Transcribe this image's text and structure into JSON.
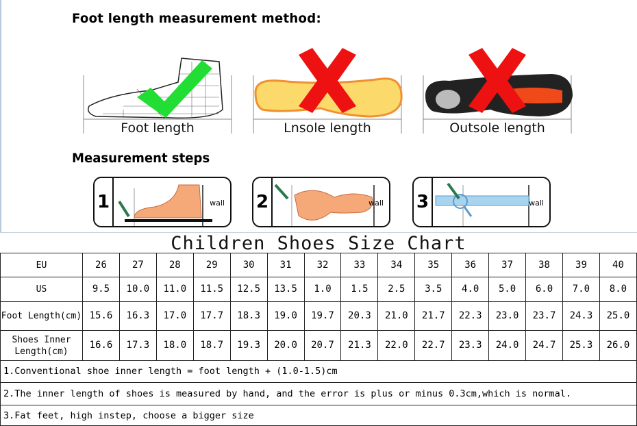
{
  "header": {
    "method_title": "Foot length measurement method:",
    "steps_title": "Measurement steps"
  },
  "methods": [
    {
      "label": "Foot length",
      "mark": "check-icon",
      "mark_color": "#22dd33"
    },
    {
      "label": "Lnsole length",
      "mark": "cross-icon",
      "mark_color": "#ee1111"
    },
    {
      "label": "Outsole length",
      "mark": "cross-icon",
      "mark_color": "#ee1111"
    }
  ],
  "steps": [
    {
      "number": "1",
      "wall": "wall"
    },
    {
      "number": "2",
      "wall": "wall"
    },
    {
      "number": "3",
      "wall": "wall"
    }
  ],
  "chart_title": "Children Shoes Size Chart",
  "table": {
    "rows": [
      {
        "header": "EU",
        "values": [
          "26",
          "27",
          "28",
          "29",
          "30",
          "31",
          "32",
          "33",
          "34",
          "35",
          "36",
          "37",
          "38",
          "39",
          "40"
        ]
      },
      {
        "header": "US",
        "values": [
          "9.5",
          "10.0",
          "11.0",
          "11.5",
          "12.5",
          "13.5",
          "1.0",
          "1.5",
          "2.5",
          "3.5",
          "4.0",
          "5.0",
          "6.0",
          "7.0",
          "8.0"
        ]
      },
      {
        "header": "Foot Length(cm)",
        "values": [
          "15.6",
          "16.3",
          "17.0",
          "17.7",
          "18.3",
          "19.0",
          "19.7",
          "20.3",
          "21.0",
          "21.7",
          "22.3",
          "23.0",
          "23.7",
          "24.3",
          "25.0"
        ]
      },
      {
        "header": "Shoes Inner Length(cm)",
        "values": [
          "16.6",
          "17.3",
          "18.0",
          "18.7",
          "19.3",
          "20.0",
          "20.7",
          "21.3",
          "22.0",
          "22.7",
          "23.3",
          "24.0",
          "24.7",
          "25.3",
          "26.0"
        ]
      }
    ]
  },
  "notes": [
    "1.Conventional shoe inner length = foot length + (1.0-1.5)cm",
    "2.The inner length of shoes is measured by hand, and the error is plus or minus 0.3cm,which is normal.",
    "3.Fat feet, high instep, choose a bigger size"
  ]
}
